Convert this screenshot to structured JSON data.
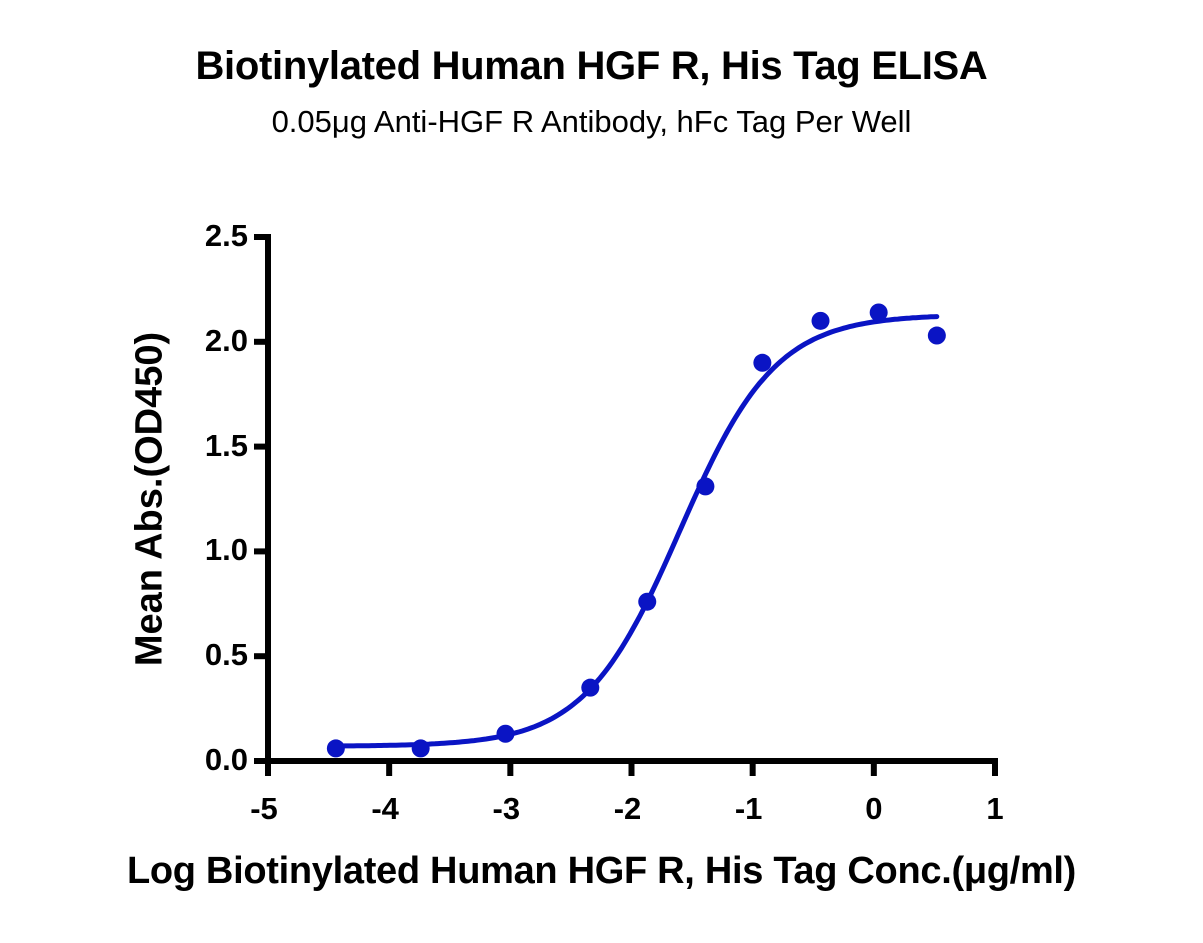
{
  "chart_data": {
    "type": "scatter",
    "title": "Biotinylated Human HGF R, His Tag ELISA",
    "subtitle": "0.05μg Anti-HGF R Antibody, hFc Tag Per Well",
    "xlabel": "Log Biotinylated Human HGF R, His Tag Conc.(μg/ml)",
    "ylabel": "Mean Abs.(OD450)",
    "xlim": [
      -5,
      1
    ],
    "ylim": [
      0,
      2.5
    ],
    "x_ticks": [
      "-5",
      "-4",
      "-3",
      "-2",
      "-1",
      "0",
      "1"
    ],
    "y_ticks": [
      "0.0",
      "0.5",
      "1.0",
      "1.5",
      "2.0",
      "2.5"
    ],
    "grid": false,
    "legend": null,
    "series": [
      {
        "name": "Mean Abs.(OD450)",
        "color": "#0a14c4",
        "marker": "circle",
        "x": [
          -4.44,
          -3.74,
          -3.04,
          -2.34,
          -1.87,
          -1.39,
          -0.92,
          -0.44,
          0.04,
          0.52
        ],
        "y": [
          0.06,
          0.06,
          0.13,
          0.35,
          0.76,
          1.31,
          1.9,
          2.1,
          2.14,
          2.03
        ]
      }
    ],
    "fit": {
      "model": "4PL sigmoidal curve",
      "color": "#0a14c4",
      "bottom": 0.07,
      "top": 2.13,
      "log_ec50": -1.6,
      "hill_slope": 1.1,
      "x_range": [
        -4.44,
        0.52
      ]
    }
  }
}
